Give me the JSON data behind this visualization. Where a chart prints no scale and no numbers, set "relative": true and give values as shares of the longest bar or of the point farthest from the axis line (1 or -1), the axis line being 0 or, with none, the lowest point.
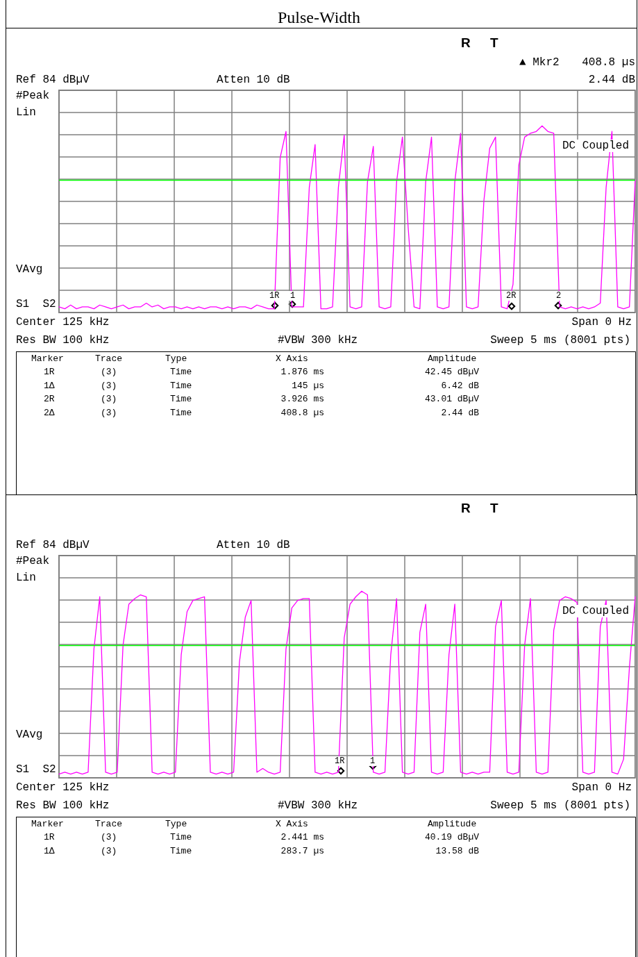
{
  "chart_data": [
    {
      "type": "line",
      "title": "Pulse-Width",
      "relative": true,
      "grid": true,
      "marker": "none",
      "line_style": "solid",
      "categories": [
        null,
        null,
        null,
        null,
        null,
        null,
        null,
        null,
        null,
        null,
        null,
        null,
        null,
        null,
        null,
        null,
        null,
        null,
        null,
        null,
        null,
        null,
        null,
        null,
        null,
        null,
        null,
        null,
        null,
        null,
        null,
        null,
        null,
        null,
        null,
        null,
        null,
        null,
        null,
        null,
        null,
        null,
        null,
        null,
        null,
        null,
        null,
        null,
        null,
        null,
        null,
        null,
        null,
        null,
        null,
        null,
        null,
        null,
        null,
        null,
        null,
        null,
        null,
        null,
        null,
        null,
        null,
        null,
        null,
        null,
        null,
        null,
        null,
        null,
        null,
        null,
        null,
        null,
        null,
        null,
        null,
        null,
        null,
        null,
        null,
        null,
        null,
        null,
        null,
        null,
        null,
        null,
        null,
        null,
        null,
        null,
        null,
        null,
        null,
        null
      ],
      "series": [
        {
          "color": "#ff00ff",
          "values": [
            0.03,
            0.02,
            0.04,
            0.02,
            0.03,
            0.03,
            0.02,
            0.04,
            0.03,
            0.02,
            0.03,
            0.04,
            0.02,
            0.03,
            0.03,
            0.05,
            0.03,
            0.04,
            0.02,
            0.03,
            0.03,
            0.02,
            0.03,
            0.02,
            0.03,
            0.02,
            0.03,
            0.03,
            0.02,
            0.03,
            0.02,
            0.03,
            0.03,
            0.02,
            0.04,
            0.03,
            0.02,
            0.02,
            0.83,
            0.97,
            0.03,
            0.03,
            0.03,
            0.67,
            0.9,
            0.02,
            0.02,
            0.03,
            0.67,
            0.95,
            0.03,
            0.02,
            0.03,
            0.7,
            0.89,
            0.03,
            0.02,
            0.03,
            0.7,
            0.94,
            0.45,
            0.03,
            0.02,
            0.7,
            0.94,
            0.03,
            0.02,
            0.03,
            0.7,
            0.96,
            0.03,
            0.02,
            0.03,
            0.6,
            0.88,
            0.94,
            0.03,
            0.02,
            0.15,
            0.79,
            0.94,
            0.96,
            0.97,
            1,
            0.97,
            0.96,
            0.03,
            0.02,
            0.03,
            0.02,
            0.03,
            0.02,
            0.03,
            0.05,
            0.67,
            0.97,
            0.03,
            0.02,
            0.03,
            0.71
          ]
        }
      ],
      "ref_lines": [
        {
          "axis": "y",
          "value": 0.71,
          "color": "#00ff00"
        }
      ],
      "annotations": [
        "R",
        "T",
        "▲ Mkr2",
        "408.8 µs",
        "Ref 84 dBµV",
        "Atten 10 dB",
        "2.44 dB",
        "#Peak",
        "Lin",
        "DC Coupled",
        "VAvg",
        "1R",
        "1",
        "2R",
        "2",
        "S1  S2",
        "Center 125 kHz",
        "Span 0 Hz",
        "Res BW 100 kHz",
        "#VBW 300 kHz",
        "Sweep 5 ms (8001 pts)",
        "Marker",
        "Trace",
        "Type",
        "X Axis",
        "Amplitude",
        "1R",
        "(3)",
        "Time",
        "1.876 ms",
        "42.45 dBµV",
        "1Δ",
        "(3)",
        "Time",
        "145 µs",
        "6.42 dB",
        "2R",
        "(3)",
        "Time",
        "3.926 ms",
        "43.01 dBµV",
        "2Δ",
        "(3)",
        "Time",
        "408.8 µs",
        "2.44 dB"
      ]
    },
    {
      "type": "line",
      "relative": true,
      "grid": true,
      "marker": "none",
      "line_style": "solid",
      "categories": [
        null,
        null,
        null,
        null,
        null,
        null,
        null,
        null,
        null,
        null,
        null,
        null,
        null,
        null,
        null,
        null,
        null,
        null,
        null,
        null,
        null,
        null,
        null,
        null,
        null,
        null,
        null,
        null,
        null,
        null,
        null,
        null,
        null,
        null,
        null,
        null,
        null,
        null,
        null,
        null,
        null,
        null,
        null,
        null,
        null,
        null,
        null,
        null,
        null,
        null,
        null,
        null,
        null,
        null,
        null,
        null,
        null,
        null,
        null,
        null,
        null,
        null,
        null,
        null,
        null,
        null,
        null,
        null,
        null,
        null,
        null,
        null,
        null,
        null,
        null,
        null,
        null,
        null,
        null,
        null,
        null,
        null,
        null,
        null,
        null,
        null,
        null,
        null,
        null,
        null,
        null,
        null,
        null,
        null,
        null,
        null,
        null,
        null,
        null,
        null
      ],
      "series": [
        {
          "color": "#ff00ff",
          "values": [
            0.02,
            0.03,
            0.02,
            0.03,
            0.02,
            0.03,
            0.69,
            0.97,
            0.03,
            0.02,
            0.03,
            0.71,
            0.93,
            0.96,
            0.98,
            0.97,
            0.03,
            0.02,
            0.03,
            0.02,
            0.03,
            0.66,
            0.89,
            0.95,
            0.96,
            0.97,
            0.03,
            0.02,
            0.03,
            0.02,
            0.03,
            0.62,
            0.86,
            0.95,
            0.03,
            0.05,
            0.03,
            0.02,
            0.03,
            0.69,
            0.91,
            0.95,
            0.96,
            0.96,
            0.03,
            0.02,
            0.03,
            0.02,
            0.03,
            0.75,
            0.93,
            0.97,
            1,
            0.98,
            0.03,
            0.02,
            0.03,
            0.66,
            0.96,
            0.03,
            0.02,
            0.03,
            0.78,
            0.93,
            0.03,
            0.02,
            0.03,
            0.66,
            0.93,
            0.03,
            0.02,
            0.03,
            0.02,
            0.03,
            0.03,
            0.81,
            0.95,
            0.03,
            0.02,
            0.03,
            0.71,
            0.96,
            0.03,
            0.02,
            0.03,
            0.79,
            0.95,
            0.97,
            0.96,
            0.94,
            0.03,
            0.02,
            0.03,
            0.81,
            0.95,
            0.03,
            0.02,
            0.1,
            0.59,
            0.97
          ]
        }
      ],
      "ref_lines": [
        {
          "axis": "y",
          "value": 0.71,
          "color": "#00ff00"
        }
      ],
      "annotations": [
        "R",
        "T",
        "Ref 84 dBµV",
        "Atten 10 dB",
        "#Peak",
        "Lin",
        "DC Coupled",
        "VAvg",
        "1R",
        "1",
        "S1  S2",
        "Center 125 kHz",
        "Span 0 Hz",
        "Res BW 100 kHz",
        "#VBW 300 kHz",
        "Sweep 5 ms (8001 pts)",
        "Marker",
        "Trace",
        "Type",
        "X Axis",
        "Amplitude",
        "1R",
        "(3)",
        "Time",
        "2.441 ms",
        "40.19 dBµV",
        "1Δ",
        "(3)",
        "Time",
        "283.7 µs",
        "13.58 dB"
      ]
    }
  ]
}
